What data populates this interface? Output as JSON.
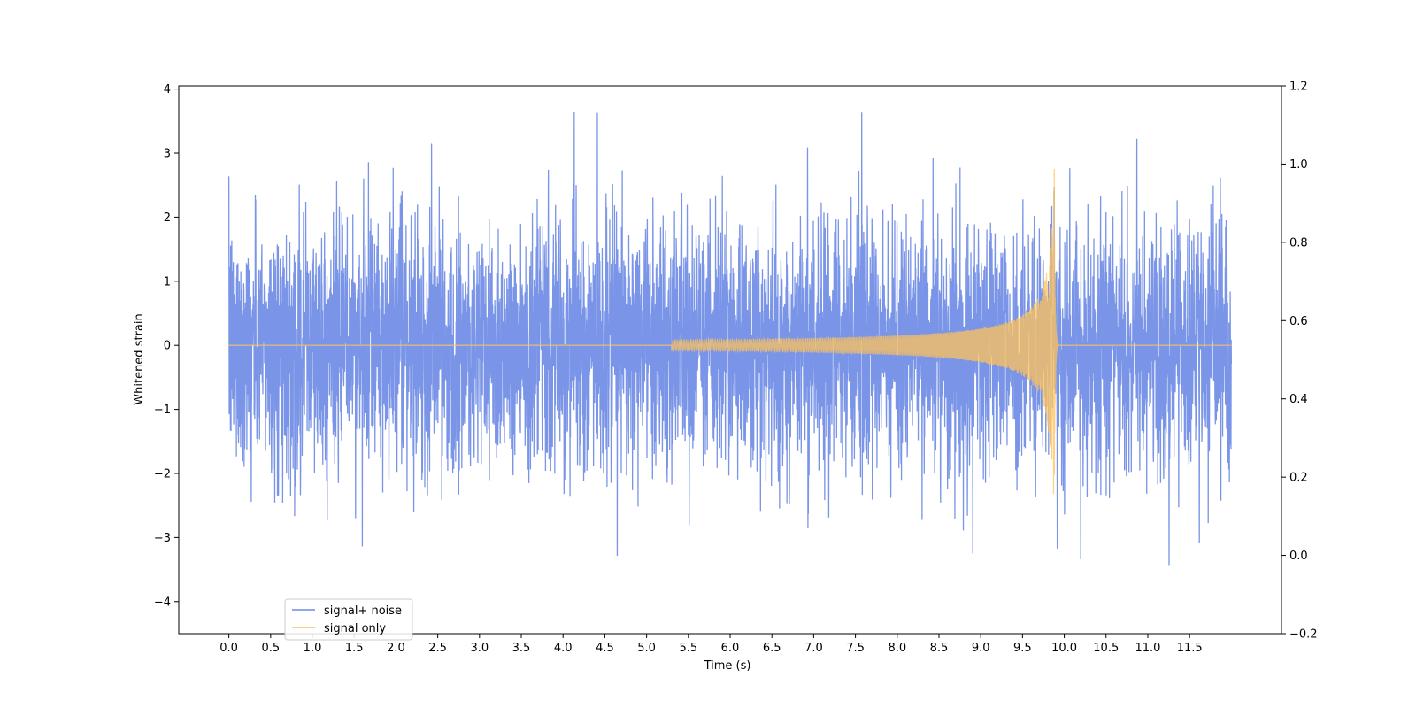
{
  "chart_data": {
    "type": "line",
    "title": "",
    "xlabel": "Time (s)",
    "ylabel": "Whitened strain",
    "y2label": "",
    "xlim": [
      -0.6,
      12.6
    ],
    "ylim": [
      -4.5,
      4.05
    ],
    "y2lim": [
      -0.2,
      1.2
    ],
    "x_ticks": [
      "0.0",
      "0.5",
      "1.0",
      "1.5",
      "2.0",
      "2.5",
      "3.0",
      "3.5",
      "4.0",
      "4.5",
      "5.0",
      "5.5",
      "6.0",
      "6.5",
      "7.0",
      "7.5",
      "8.0",
      "8.5",
      "9.0",
      "9.5",
      "10.0",
      "10.5",
      "11.0",
      "11.5"
    ],
    "y_ticks": [
      "4",
      "3",
      "2",
      "1",
      "0",
      "−1",
      "−2",
      "−3",
      "−4"
    ],
    "y2_ticks": [
      "1.2",
      "1.0",
      "0.8",
      "0.6",
      "0.4",
      "0.2",
      "0.0",
      "−0.2"
    ],
    "grid": false,
    "legend_position": "bottom-left",
    "duration_s": 12.0,
    "merger_time_s": 9.88,
    "series": [
      {
        "name": "signal+ noise",
        "color": "#6c8ae4",
        "description_values": {
          "noise_envelope": [
            -4.1,
            3.65
          ],
          "typical_range": [
            -2.0,
            2.0
          ]
        }
      },
      {
        "name": "signal only",
        "color": "#ffc35a",
        "chirp_peak_amplitude": [
          -3.2,
          2.8
        ],
        "chirp_onset_s": 5.3
      }
    ]
  }
}
